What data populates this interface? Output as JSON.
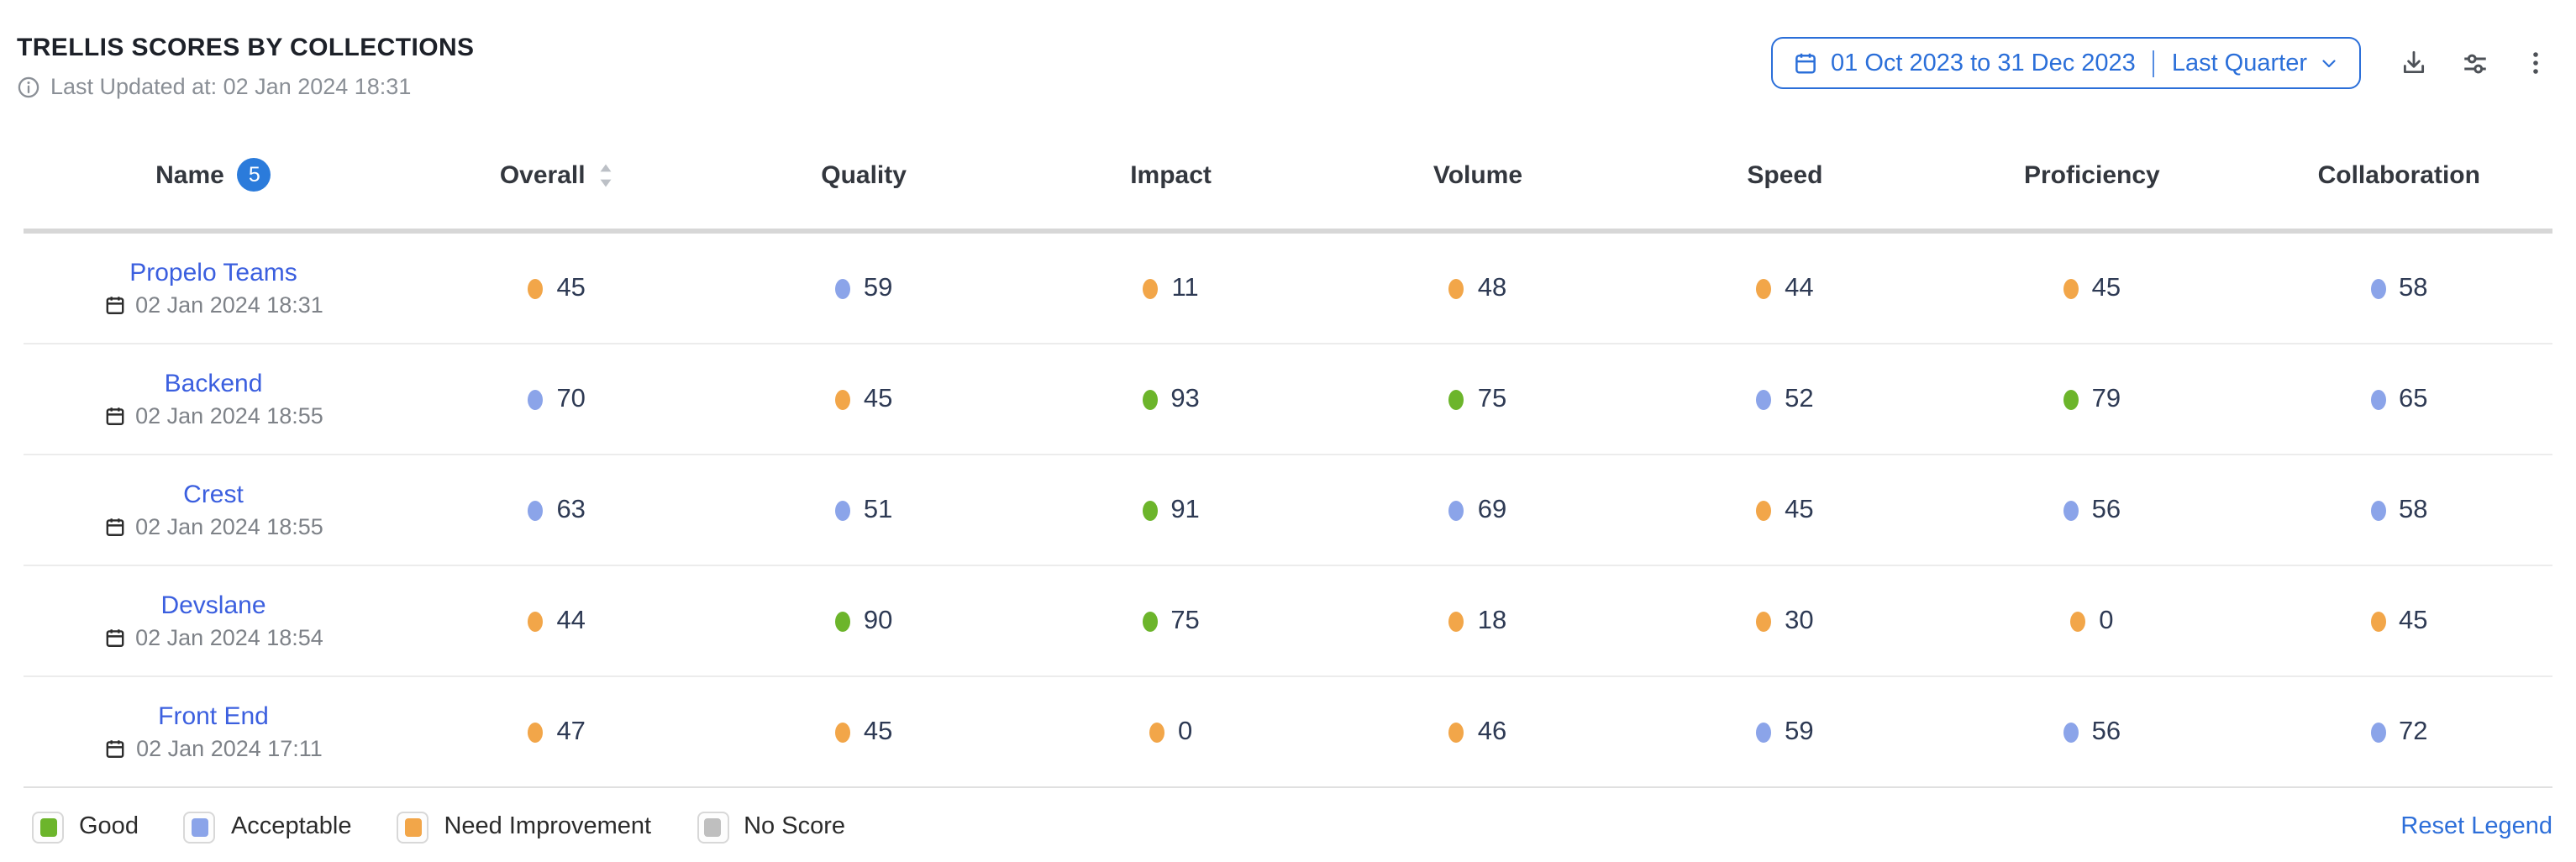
{
  "widget": {
    "title": "TRELLIS SCORES BY COLLECTIONS",
    "last_updated": "Last Updated at: 02 Jan 2024 18:31",
    "date_picker": {
      "range": "01 Oct 2023 to 31 Dec 2023",
      "preset": "Last Quarter"
    }
  },
  "table": {
    "columns": [
      {
        "label": "Name",
        "badge_count": "5"
      },
      {
        "label": "Overall",
        "sortable": true
      },
      {
        "label": "Quality"
      },
      {
        "label": "Impact"
      },
      {
        "label": "Volume"
      },
      {
        "label": "Speed"
      },
      {
        "label": "Proficiency"
      },
      {
        "label": "Collaboration"
      }
    ],
    "rows": [
      {
        "name": "Propelo Teams",
        "updated": "02 Jan 2024 18:31",
        "scores": [
          {
            "value": 45,
            "status": "need_improvement"
          },
          {
            "value": 59,
            "status": "acceptable"
          },
          {
            "value": 11,
            "status": "need_improvement"
          },
          {
            "value": 48,
            "status": "need_improvement"
          },
          {
            "value": 44,
            "status": "need_improvement"
          },
          {
            "value": 45,
            "status": "need_improvement"
          },
          {
            "value": 58,
            "status": "acceptable"
          }
        ]
      },
      {
        "name": "Backend",
        "updated": "02 Jan 2024 18:55",
        "scores": [
          {
            "value": 70,
            "status": "acceptable"
          },
          {
            "value": 45,
            "status": "need_improvement"
          },
          {
            "value": 93,
            "status": "good"
          },
          {
            "value": 75,
            "status": "good"
          },
          {
            "value": 52,
            "status": "acceptable"
          },
          {
            "value": 79,
            "status": "good"
          },
          {
            "value": 65,
            "status": "acceptable"
          }
        ]
      },
      {
        "name": "Crest",
        "updated": "02 Jan 2024 18:55",
        "scores": [
          {
            "value": 63,
            "status": "acceptable"
          },
          {
            "value": 51,
            "status": "acceptable"
          },
          {
            "value": 91,
            "status": "good"
          },
          {
            "value": 69,
            "status": "acceptable"
          },
          {
            "value": 45,
            "status": "need_improvement"
          },
          {
            "value": 56,
            "status": "acceptable"
          },
          {
            "value": 58,
            "status": "acceptable"
          }
        ]
      },
      {
        "name": "Devslane",
        "updated": "02 Jan 2024 18:54",
        "scores": [
          {
            "value": 44,
            "status": "need_improvement"
          },
          {
            "value": 90,
            "status": "good"
          },
          {
            "value": 75,
            "status": "good"
          },
          {
            "value": 18,
            "status": "need_improvement"
          },
          {
            "value": 30,
            "status": "need_improvement"
          },
          {
            "value": 0,
            "status": "need_improvement"
          },
          {
            "value": 45,
            "status": "need_improvement"
          }
        ]
      },
      {
        "name": "Front End",
        "updated": "02 Jan 2024 17:11",
        "scores": [
          {
            "value": 47,
            "status": "need_improvement"
          },
          {
            "value": 45,
            "status": "need_improvement"
          },
          {
            "value": 0,
            "status": "need_improvement"
          },
          {
            "value": 46,
            "status": "need_improvement"
          },
          {
            "value": 59,
            "status": "acceptable"
          },
          {
            "value": 56,
            "status": "acceptable"
          },
          {
            "value": 72,
            "status": "acceptable"
          }
        ]
      }
    ]
  },
  "legend": {
    "items": [
      {
        "label": "Good",
        "status": "good",
        "color": "#6CB52B"
      },
      {
        "label": "Acceptable",
        "status": "acceptable",
        "color": "#8BA4E9"
      },
      {
        "label": "Need Improvement",
        "status": "need_improvement",
        "color": "#F2A649"
      },
      {
        "label": "No Score",
        "status": "no_score",
        "color": "#BFBFBF"
      }
    ],
    "reset_label": "Reset Legend"
  },
  "colors": {
    "good": "#6CB52B",
    "acceptable": "#8BA4E9",
    "need_improvement": "#F2A649",
    "no_score": "#BFBFBF",
    "link_blue": "#3B5FDF",
    "picker_blue": "#2B6FD9",
    "badge_blue": "#2B7BDB",
    "score_text": "#2E3A54"
  }
}
